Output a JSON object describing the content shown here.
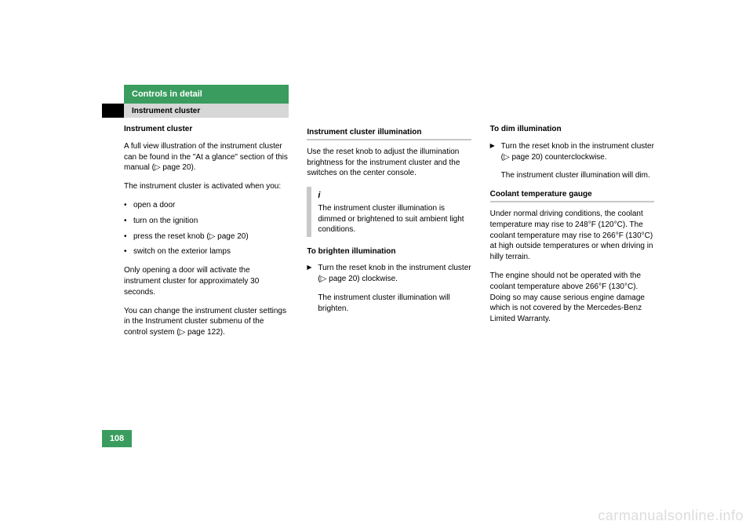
{
  "header": {
    "section_title": "Controls in detail",
    "subsection": "Instrument cluster",
    "tab_bg": "#3a9d5f",
    "sub_bg": "#d7d7d7"
  },
  "col1": {
    "title": "Instrument cluster",
    "p1": "A full view illustration of the instrument cluster can be found in the \"At a glance\" section of this manual (▷ page 20).",
    "p2": "The instrument cluster is activated when you:",
    "bullets": [
      "open a door",
      "turn on the ignition",
      "press the reset knob (▷ page 20)",
      "switch on the exterior lamps"
    ],
    "p3": "Only opening a door will activate the instrument cluster for approximately 30 seconds.",
    "p4": "You can change the instrument cluster settings in the Instrument cluster submenu of the control system (▷ page 122)."
  },
  "col2": {
    "h5": "Instrument cluster illumination",
    "p1": "Use the reset knob to adjust the illumination brightness for the instrument cluster and the switches on the center console.",
    "info_icon": "i",
    "info": "The instrument cluster illumination is dimmed or brightened to suit ambient light conditions.",
    "h6": "To brighten illumination",
    "act1": "Turn the reset knob in the instrument cluster (▷ page 20) clockwise.",
    "act1b": "The instrument cluster illumination will brighten."
  },
  "col3": {
    "h6a": "To dim illumination",
    "act1": "Turn the reset knob in the instrument cluster (▷ page 20) counterclockwise.",
    "act1b": "The instrument cluster illumination will dim.",
    "h5": "Coolant temperature gauge",
    "p1": "Under normal driving conditions, the coolant temperature may rise to 248°F (120°C). The coolant temperature may rise to 266°F (130°C) at high outside temperatures or when driving in hilly terrain.",
    "p2": "The engine should not be operated with the coolant temperature above 266°F (130°C). Doing so may cause serious engine damage which is not covered by the Mercedes-Benz Limited Warranty."
  },
  "page_number": "108",
  "watermark": "carmanualsonline.info"
}
